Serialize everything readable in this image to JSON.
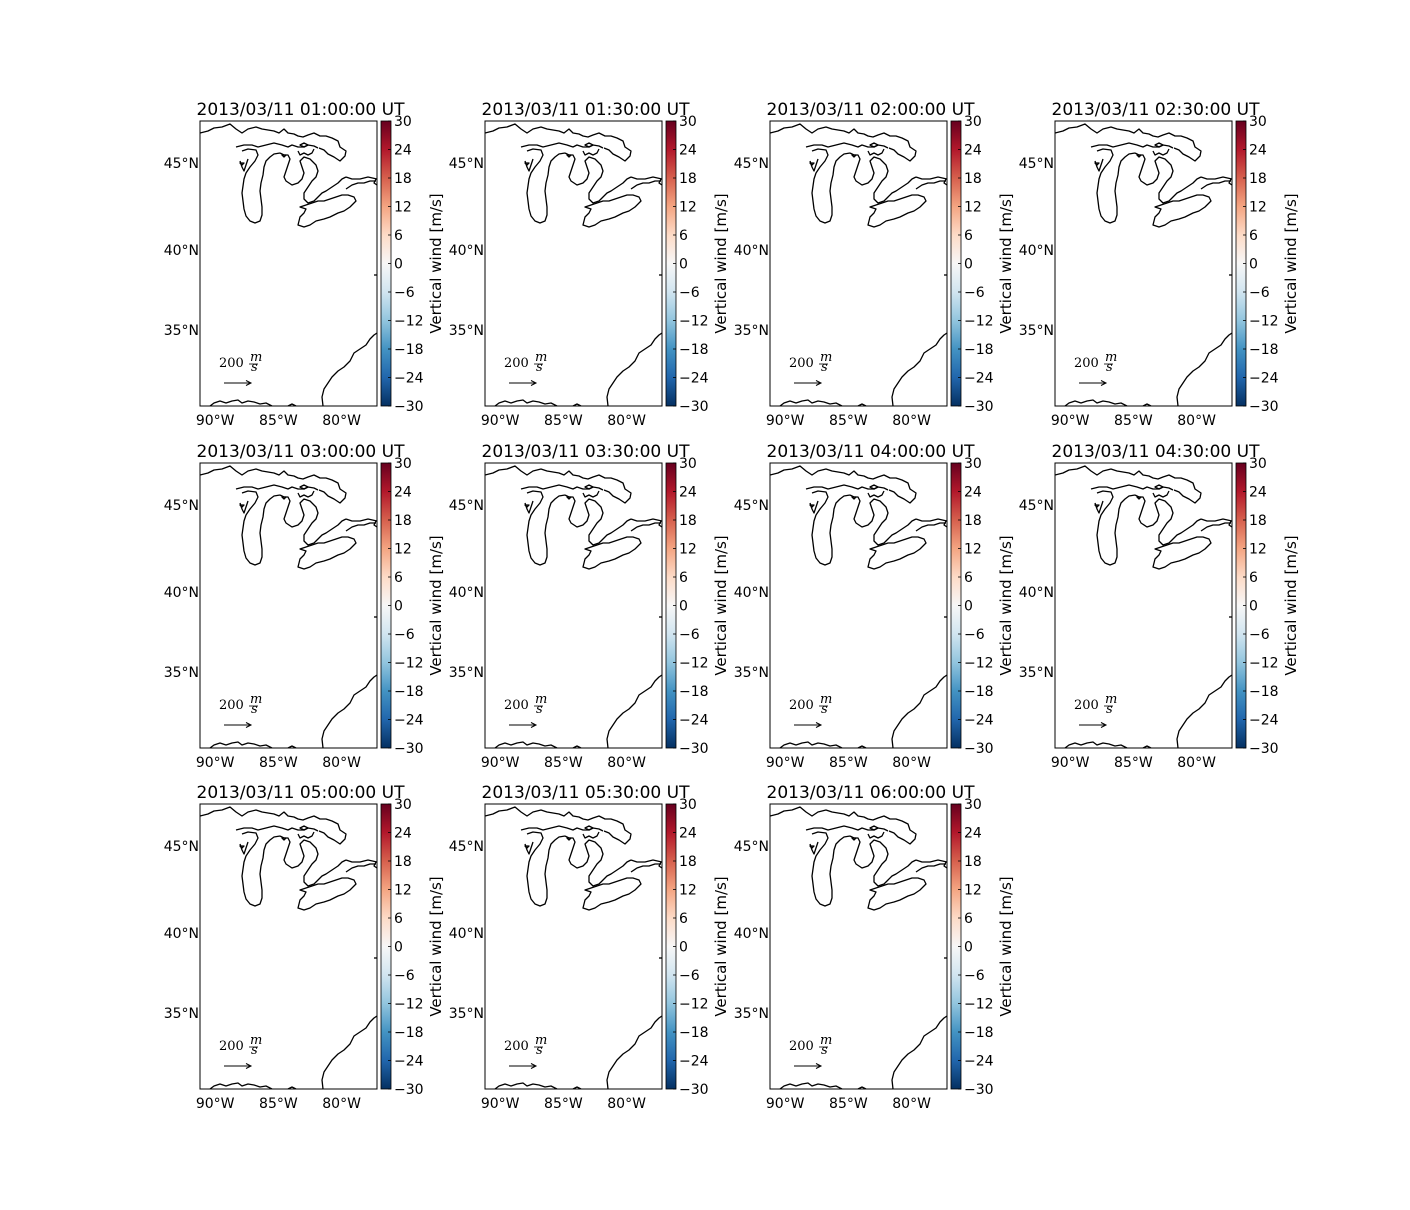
{
  "figure": {
    "panels": [
      {
        "title": "2013/03/11 01:00:00 UT"
      },
      {
        "title": "2013/03/11 01:30:00 UT"
      },
      {
        "title": "2013/03/11 02:00:00 UT"
      },
      {
        "title": "2013/03/11 02:30:00 UT"
      },
      {
        "title": "2013/03/11 03:00:00 UT"
      },
      {
        "title": "2013/03/11 03:30:00 UT"
      },
      {
        "title": "2013/03/11 04:00:00 UT"
      },
      {
        "title": "2013/03/11 04:30:00 UT"
      },
      {
        "title": "2013/03/11 05:00:00 UT"
      },
      {
        "title": "2013/03/11 05:30:00 UT"
      },
      {
        "title": "2013/03/11 06:00:00 UT"
      }
    ],
    "lon_ticks": [
      "90°W",
      "85°W",
      "80°W"
    ],
    "lat_ticks": [
      "45°N",
      "40°N",
      "35°N"
    ],
    "colorbar": {
      "label": "Vertical wind [m/s]",
      "ticks": [
        "30",
        "24",
        "18",
        "12",
        "6",
        "0",
        "−6",
        "−12",
        "−18",
        "−24",
        "−30"
      ],
      "colormap": "RdBu_r",
      "colors": [
        "#67001f",
        "#b2182b",
        "#d6604d",
        "#f4a582",
        "#fddbc7",
        "#f7f7f7",
        "#d1e5f0",
        "#92c5de",
        "#4393c3",
        "#2166ac",
        "#053061"
      ]
    },
    "quiver_key": {
      "value": "200",
      "unit_num": "m",
      "unit_den": "s"
    },
    "map_extent": {
      "lon": [
        -91.2,
        -77.2
      ],
      "lat": [
        30.5,
        47.2
      ]
    }
  }
}
